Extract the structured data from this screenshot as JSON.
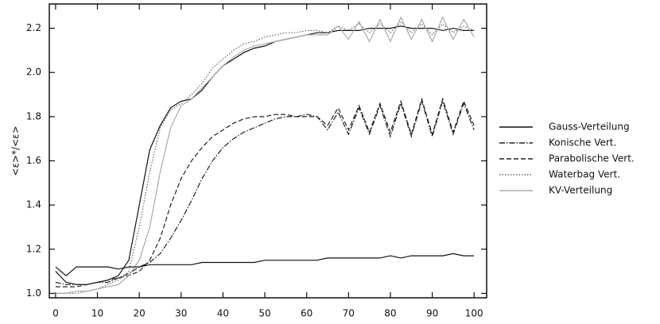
{
  "chart_data": {
    "type": "line",
    "ylabel": "<ε>*/<ε>",
    "x": [
      0,
      2.5,
      5,
      7.5,
      10,
      12.5,
      15,
      17.5,
      20,
      22.5,
      25,
      27.5,
      30,
      32.5,
      35,
      37.5,
      40,
      42.5,
      45,
      47.5,
      50,
      52.5,
      55,
      57.5,
      60,
      62.5,
      65,
      67.5,
      70,
      72.5,
      75,
      77.5,
      80,
      82.5,
      85,
      87.5,
      90,
      92.5,
      95,
      97.5,
      100
    ],
    "series": [
      {
        "name": "Gauss-Verteilung",
        "color": "#111111",
        "style": "solid",
        "values": [
          1.1,
          1.05,
          1.04,
          1.04,
          1.05,
          1.06,
          1.08,
          1.15,
          1.4,
          1.65,
          1.76,
          1.84,
          1.87,
          1.88,
          1.92,
          1.98,
          2.03,
          2.06,
          2.09,
          2.11,
          2.12,
          2.14,
          2.15,
          2.16,
          2.17,
          2.18,
          2.18,
          2.19,
          2.19,
          2.19,
          2.2,
          2.2,
          2.2,
          2.21,
          2.2,
          2.2,
          2.2,
          2.19,
          2.2,
          2.19,
          2.19
        ]
      },
      {
        "name": "Konische Vert.",
        "color": "#222222",
        "style": "dashdot",
        "values": [
          1.05,
          1.04,
          1.04,
          1.04,
          1.05,
          1.05,
          1.07,
          1.09,
          1.12,
          1.14,
          1.18,
          1.25,
          1.33,
          1.42,
          1.52,
          1.6,
          1.66,
          1.7,
          1.73,
          1.75,
          1.77,
          1.79,
          1.8,
          1.8,
          1.81,
          1.8,
          1.74,
          1.82,
          1.72,
          1.84,
          1.72,
          1.85,
          1.71,
          1.86,
          1.71,
          1.87,
          1.71,
          1.87,
          1.72,
          1.86,
          1.74
        ]
      },
      {
        "name": "Parabolische Vert.",
        "color": "#222222",
        "style": "dashed",
        "values": [
          1.03,
          1.03,
          1.03,
          1.04,
          1.05,
          1.06,
          1.07,
          1.08,
          1.1,
          1.15,
          1.25,
          1.4,
          1.52,
          1.6,
          1.66,
          1.71,
          1.74,
          1.77,
          1.79,
          1.8,
          1.8,
          1.81,
          1.81,
          1.8,
          1.8,
          1.8,
          1.76,
          1.84,
          1.74,
          1.85,
          1.73,
          1.86,
          1.73,
          1.87,
          1.72,
          1.88,
          1.72,
          1.88,
          1.73,
          1.87,
          1.76
        ]
      },
      {
        "name": "Waterbag Vert.",
        "color": "#666666",
        "style": "dotted",
        "values": [
          1.0,
          1.0,
          1.0,
          1.01,
          1.02,
          1.04,
          1.06,
          1.1,
          1.3,
          1.55,
          1.75,
          1.83,
          1.86,
          1.9,
          1.95,
          2.02,
          2.06,
          2.1,
          2.13,
          2.14,
          2.16,
          2.17,
          2.18,
          2.18,
          2.19,
          2.19,
          2.18,
          2.21,
          2.19,
          2.22,
          2.18,
          2.22,
          2.18,
          2.23,
          2.18,
          2.22,
          2.17,
          2.22,
          2.18,
          2.21,
          2.19
        ]
      },
      {
        "name": "KV-Verteilung",
        "color": "#aaaaaa",
        "style": "solid",
        "values": [
          1.0,
          1.0,
          1.01,
          1.01,
          1.02,
          1.03,
          1.04,
          1.08,
          1.15,
          1.3,
          1.55,
          1.75,
          1.85,
          1.88,
          1.93,
          1.98,
          2.03,
          2.07,
          2.1,
          2.12,
          2.13,
          2.14,
          2.15,
          2.16,
          2.17,
          2.17,
          2.17,
          2.21,
          2.15,
          2.23,
          2.14,
          2.24,
          2.14,
          2.25,
          2.15,
          2.24,
          2.14,
          2.25,
          2.15,
          2.24,
          2.16
        ]
      },
      {
        "name": null,
        "color": "#111111",
        "style": "solid",
        "values": [
          1.12,
          1.08,
          1.12,
          1.12,
          1.12,
          1.12,
          1.11,
          1.12,
          1.12,
          1.13,
          1.13,
          1.13,
          1.13,
          1.13,
          1.14,
          1.14,
          1.14,
          1.14,
          1.14,
          1.14,
          1.15,
          1.15,
          1.15,
          1.15,
          1.15,
          1.15,
          1.16,
          1.16,
          1.16,
          1.16,
          1.16,
          1.16,
          1.17,
          1.16,
          1.17,
          1.17,
          1.17,
          1.17,
          1.18,
          1.17,
          1.17
        ]
      }
    ],
    "xlim": [
      -1.5,
      103
    ],
    "xticks": [
      0,
      10,
      20,
      30,
      40,
      50,
      60,
      70,
      80,
      90,
      100
    ],
    "ylim": [
      0.98,
      2.31
    ],
    "yticks": [
      {
        "value": 1,
        "label": "1.0"
      },
      {
        "value": 1.2,
        "label": "1.2"
      },
      {
        "value": 1.4,
        "label": "1.4"
      },
      {
        "value": 1.6,
        "label": "1.6"
      },
      {
        "value": 1.8,
        "label": "1.8"
      },
      {
        "value": 2,
        "label": "2.0"
      },
      {
        "value": 2.2,
        "label": "2.2"
      }
    ],
    "legend": "right"
  }
}
